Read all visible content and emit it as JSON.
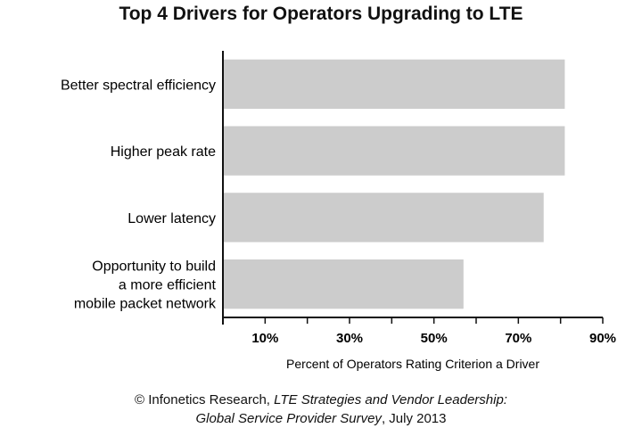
{
  "chart_data": {
    "type": "bar",
    "orientation": "horizontal",
    "title": "Top 4 Drivers for Operators Upgrading to LTE",
    "xlabel": "Percent of Operators Rating Criterion a Driver",
    "ylabel": "",
    "xlim": [
      0,
      90
    ],
    "ticks": [
      10,
      30,
      50,
      70,
      90
    ],
    "tick_labels": [
      "10%",
      "30%",
      "50%",
      "70%",
      "90%"
    ],
    "grid": false,
    "legend": "none",
    "bar_color": "#cccccc",
    "categories": [
      [
        "Better spectral efficiency"
      ],
      [
        "Higher peak rate"
      ],
      [
        "Lower latency"
      ],
      [
        "Opportunity to build",
        "a more efficient",
        "mobile packet network"
      ]
    ],
    "values": [
      81,
      81,
      76,
      57
    ]
  },
  "source": {
    "prefix": "© Infonetics Research, ",
    "report_italic": "LTE Strategies and Vendor Leadership:",
    "survey_italic": "Global Service Provider Survey",
    "date": ", July 2013"
  }
}
